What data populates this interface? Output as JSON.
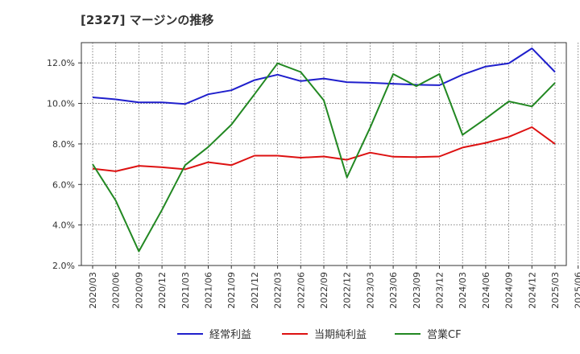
{
  "chart_data": {
    "type": "line",
    "title": "[2327]  マージンの推移",
    "x": [
      "2020/03",
      "2020/06",
      "2020/09",
      "2020/12",
      "2021/03",
      "2021/06",
      "2021/09",
      "2021/12",
      "2022/03",
      "2022/06",
      "2022/09",
      "2022/12",
      "2023/03",
      "2023/06",
      "2023/09",
      "2023/12",
      "2024/03",
      "2024/06",
      "2024/09",
      "2024/12",
      "2025/03",
      "2025/06"
    ],
    "xlabel": "",
    "ylabel": "",
    "ylim": [
      2.0,
      13.0
    ],
    "yticks": [
      2.0,
      4.0,
      6.0,
      8.0,
      10.0,
      12.0
    ],
    "ytick_labels": [
      "2.0%",
      "4.0%",
      "6.0%",
      "8.0%",
      "10.0%",
      "12.0%"
    ],
    "grid": true,
    "legend_position": "bottom",
    "series": [
      {
        "name": "経常利益",
        "color": "#1f1fcc",
        "values": [
          10.3,
          10.2,
          10.05,
          10.05,
          9.97,
          10.45,
          10.65,
          11.15,
          11.42,
          11.1,
          11.23,
          11.05,
          11.02,
          10.97,
          10.92,
          10.9,
          11.42,
          11.82,
          11.98,
          12.72,
          11.55,
          null
        ]
      },
      {
        "name": "当期純利益",
        "color": "#dd1111",
        "values": [
          6.78,
          6.65,
          6.92,
          6.85,
          6.75,
          7.1,
          6.95,
          7.42,
          7.42,
          7.32,
          7.38,
          7.22,
          7.57,
          7.37,
          7.35,
          7.38,
          7.82,
          8.05,
          8.35,
          8.83,
          8.0,
          null
        ]
      },
      {
        "name": "営業CF",
        "color": "#228822",
        "values": [
          7.0,
          5.2,
          2.7,
          4.75,
          6.95,
          7.85,
          8.95,
          10.45,
          11.98,
          11.55,
          10.15,
          6.35,
          8.8,
          11.45,
          10.85,
          11.45,
          8.45,
          9.25,
          10.1,
          9.85,
          11.02,
          null
        ]
      }
    ]
  }
}
